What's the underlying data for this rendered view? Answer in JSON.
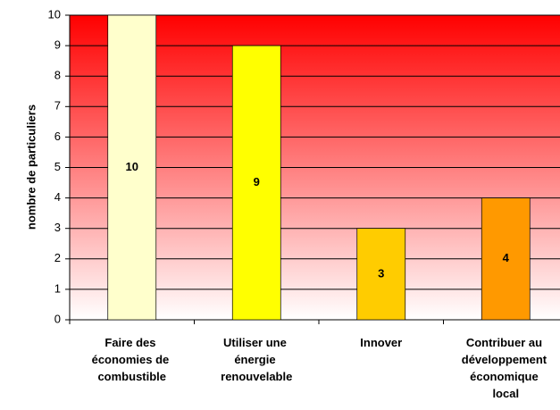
{
  "chart_data": {
    "type": "bar",
    "y_label": "nombre de particuliers",
    "categories": [
      "Faire des économies de combustible",
      "Utiliser une énergie renouvelable",
      "Innover",
      "Contribuer au développement économique local"
    ],
    "values": [
      10,
      9,
      3,
      4
    ],
    "colors": [
      "#ffffcc",
      "#ffff00",
      "#ffcc00",
      "#ff9900"
    ],
    "ylim": [
      0,
      10
    ],
    "yticks": [
      0,
      1,
      2,
      3,
      4,
      5,
      6,
      7,
      8,
      9,
      10
    ],
    "grid": true
  }
}
